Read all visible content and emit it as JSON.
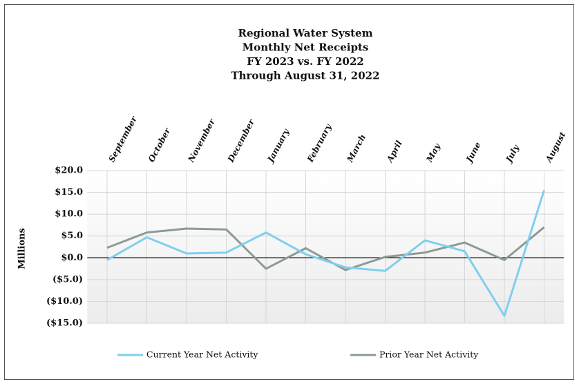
{
  "chart_data": {
    "type": "line",
    "title": [
      "Regional Water System",
      "Monthly Net Receipts",
      "FY 2023 vs. FY 2022",
      "Through August 31, 2022"
    ],
    "y_label": "Millions",
    "categories": [
      "September",
      "October",
      "November",
      "December",
      "January",
      "February",
      "March",
      "April",
      "May",
      "June",
      "July",
      "August"
    ],
    "series": [
      {
        "name": "Current Year Net Activity",
        "color": "#7fcfee",
        "values": [
          -0.5,
          4.7,
          1.0,
          1.2,
          5.8,
          0.8,
          -2.2,
          -3.0,
          4.0,
          1.5,
          -13.3,
          15.5
        ]
      },
      {
        "name": "Prior Year Net Activity",
        "color": "#8d9b95",
        "values": [
          2.3,
          5.8,
          6.7,
          6.5,
          -2.5,
          2.2,
          -2.8,
          0.2,
          1.2,
          3.5,
          -0.5,
          7.0
        ]
      }
    ],
    "ylim": [
      -15,
      20
    ],
    "yticks": [
      {
        "value": 20,
        "label": "$20.0"
      },
      {
        "value": 15,
        "label": "$15.0"
      },
      {
        "value": 10,
        "label": "$10.0"
      },
      {
        "value": 5,
        "label": "$5.0"
      },
      {
        "value": 0,
        "label": "$0.0"
      },
      {
        "value": -5,
        "label": "($5.0)"
      },
      {
        "value": -10,
        "label": "($10.0)"
      },
      {
        "value": -15,
        "label": "($15.0)"
      }
    ],
    "grid": true,
    "legend": "bottom"
  }
}
